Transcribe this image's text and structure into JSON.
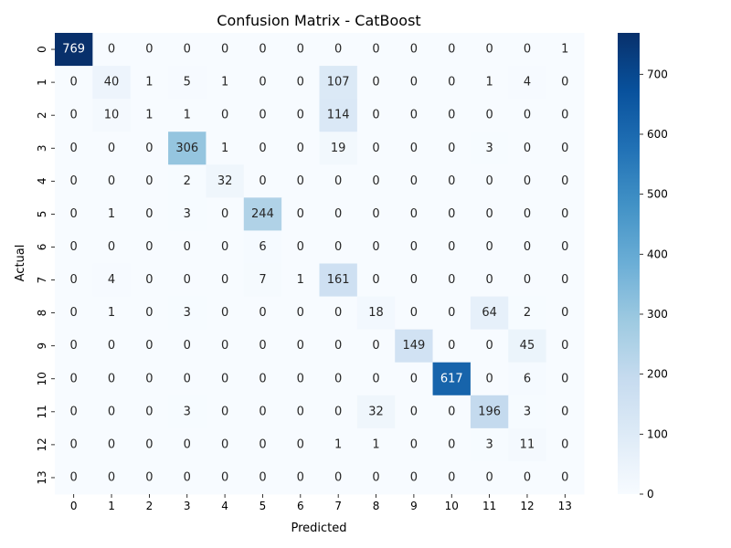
{
  "chart_data": {
    "type": "heatmap",
    "title": "Confusion Matrix - CatBoost",
    "xlabel": "Predicted",
    "ylabel": "Actual",
    "x_categories": [
      "0",
      "1",
      "2",
      "3",
      "4",
      "5",
      "6",
      "7",
      "8",
      "9",
      "10",
      "11",
      "12",
      "13"
    ],
    "y_categories": [
      "0",
      "1",
      "2",
      "3",
      "4",
      "5",
      "6",
      "7",
      "8",
      "9",
      "10",
      "11",
      "12",
      "13"
    ],
    "matrix": [
      [
        769,
        0,
        0,
        0,
        0,
        0,
        0,
        0,
        0,
        0,
        0,
        0,
        0,
        1
      ],
      [
        0,
        40,
        1,
        5,
        1,
        0,
        0,
        107,
        0,
        0,
        0,
        1,
        4,
        0
      ],
      [
        0,
        10,
        1,
        1,
        0,
        0,
        0,
        114,
        0,
        0,
        0,
        0,
        0,
        0
      ],
      [
        0,
        0,
        0,
        306,
        1,
        0,
        0,
        19,
        0,
        0,
        0,
        3,
        0,
        0
      ],
      [
        0,
        0,
        0,
        2,
        32,
        0,
        0,
        0,
        0,
        0,
        0,
        0,
        0,
        0
      ],
      [
        0,
        1,
        0,
        3,
        0,
        244,
        0,
        0,
        0,
        0,
        0,
        0,
        0,
        0
      ],
      [
        0,
        0,
        0,
        0,
        0,
        6,
        0,
        0,
        0,
        0,
        0,
        0,
        0,
        0
      ],
      [
        0,
        4,
        0,
        0,
        0,
        7,
        1,
        161,
        0,
        0,
        0,
        0,
        0,
        0
      ],
      [
        0,
        1,
        0,
        3,
        0,
        0,
        0,
        0,
        18,
        0,
        0,
        64,
        2,
        0
      ],
      [
        0,
        0,
        0,
        0,
        0,
        0,
        0,
        0,
        0,
        149,
        0,
        0,
        45,
        0
      ],
      [
        0,
        0,
        0,
        0,
        0,
        0,
        0,
        0,
        0,
        0,
        617,
        0,
        6,
        0
      ],
      [
        0,
        0,
        0,
        3,
        0,
        0,
        0,
        0,
        32,
        0,
        0,
        196,
        3,
        0
      ],
      [
        0,
        0,
        0,
        0,
        0,
        0,
        0,
        1,
        1,
        0,
        0,
        3,
        11,
        0
      ],
      [
        0,
        0,
        0,
        0,
        0,
        0,
        0,
        0,
        0,
        0,
        0,
        0,
        0,
        0
      ]
    ],
    "colormap": "Blues",
    "colorbar": {
      "min": 0,
      "max": 769,
      "ticks": [
        0,
        100,
        200,
        300,
        400,
        500,
        600,
        700
      ]
    },
    "annotations": true,
    "grid": false
  }
}
